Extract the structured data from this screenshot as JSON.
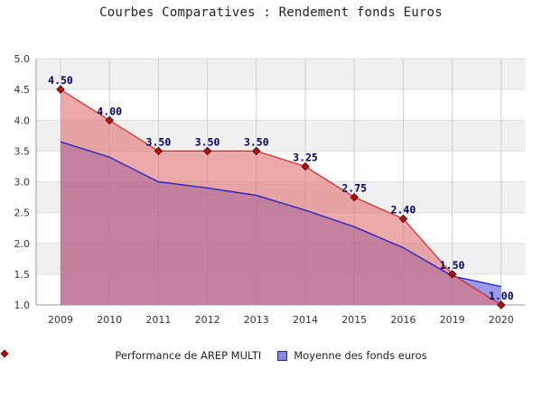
{
  "chart_data": {
    "type": "area",
    "title": "Courbes Comparatives : Rendement fonds Euros",
    "categories": [
      "2009",
      "2010",
      "2011",
      "2012",
      "2013",
      "2014",
      "2015",
      "2016",
      "2019",
      "2020"
    ],
    "series": [
      {
        "name": "Performance de AREP MULTI",
        "values": [
          4.5,
          4.0,
          3.5,
          3.5,
          3.5,
          3.25,
          2.75,
          2.4,
          1.5,
          1.0
        ],
        "value_labels": [
          "4.50",
          "4.00",
          "3.50",
          "3.50",
          "3.50",
          "3.25",
          "2.75",
          "2.40",
          "1.50",
          "1.00"
        ],
        "color": "#dd2222",
        "fill": "#e07070",
        "marker": "diamond"
      },
      {
        "name": "Moyenne des fonds euros",
        "values": [
          3.65,
          3.4,
          3.0,
          2.9,
          2.78,
          2.54,
          2.27,
          1.93,
          1.47,
          1.3
        ],
        "color": "#1111cc",
        "fill": "#7777dd"
      }
    ],
    "y_ticks": [
      "1.0",
      "1.5",
      "2.0",
      "2.5",
      "3.0",
      "3.5",
      "4.0",
      "4.5",
      "5.0"
    ],
    "ylim": [
      1.0,
      5.0
    ],
    "grid": true,
    "legend_position": "bottom"
  }
}
